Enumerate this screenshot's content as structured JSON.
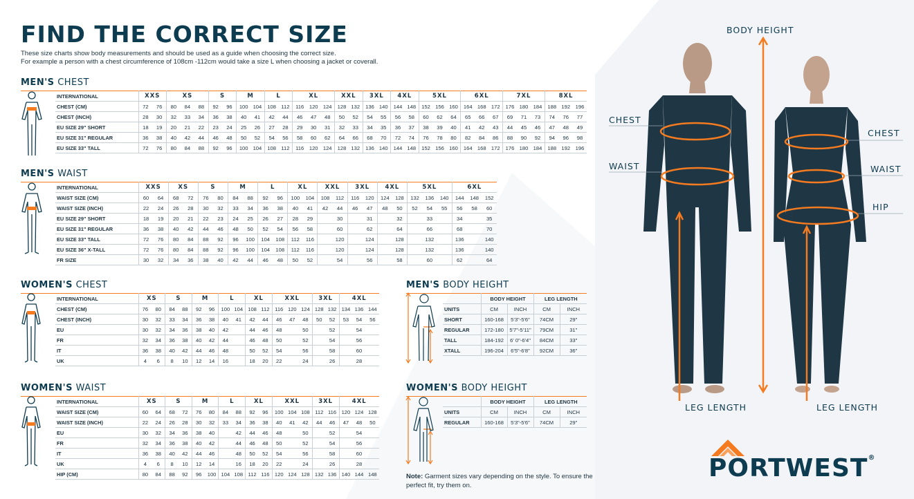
{
  "title": "FIND THE CORRECT SIZE",
  "intro": [
    "These size charts show body measurements and should be used as a guide when choosing the correct size.",
    "For example a person with a chest circumference of 108cm -112cm would take a size L when choosing a jacket or coverall."
  ],
  "colors": {
    "brand": "#0d3b4f",
    "accent": "#f47b20"
  },
  "tables": {
    "mens_chest": {
      "title_bold": "MEN'S",
      "title_rest": "CHEST",
      "icon": "male-chest-figure-icon",
      "header_label": "INTERNATIONAL",
      "sizes": [
        [
          "XXS",
          2
        ],
        [
          "XS",
          3
        ],
        [
          "S",
          2
        ],
        [
          "M",
          2
        ],
        [
          "L",
          2
        ],
        [
          "XL",
          3
        ],
        [
          "XXL",
          2
        ],
        [
          "3XL",
          2
        ],
        [
          "4XL",
          2
        ],
        [
          "5XL",
          3
        ],
        [
          "6XL",
          3
        ],
        [
          "7XL",
          3
        ],
        [
          "8XL",
          3
        ]
      ],
      "rows": [
        {
          "label": "CHEST (CM)",
          "cells": [
            "72",
            "76",
            "80",
            "84",
            "88",
            "92",
            "96",
            "100",
            "104",
            "108",
            "112",
            "116",
            "120",
            "124",
            "128",
            "132",
            "136",
            "140",
            "144",
            "148",
            "152",
            "156",
            "160",
            "164",
            "168",
            "172",
            "176",
            "180",
            "184",
            "188",
            "192",
            "196"
          ]
        },
        {
          "label": "CHEST (INCH)",
          "cells": [
            "28",
            "30",
            "32",
            "33",
            "34",
            "36",
            "38",
            "40",
            "41",
            "42",
            "44",
            "46",
            "47",
            "48",
            "50",
            "52",
            "54",
            "55",
            "56",
            "58",
            "60",
            "62",
            "64",
            "65",
            "66",
            "67",
            "69",
            "71",
            "73",
            "74",
            "76",
            "77"
          ]
        },
        {
          "label": "EU SIZE 29\" SHORT",
          "cells": [
            "18",
            "19",
            "20",
            "21",
            "22",
            "23",
            "24",
            "25",
            "26",
            "27",
            "28",
            "29",
            "30",
            "31",
            "32",
            "33",
            "34",
            "35",
            "36",
            "37",
            "38",
            "39",
            "40",
            "41",
            "42",
            "43",
            "44",
            "45",
            "46",
            "47",
            "48",
            "49"
          ]
        },
        {
          "label": "EU SIZE 31\" REGULAR",
          "cells": [
            "36",
            "38",
            "40",
            "42",
            "44",
            "46",
            "48",
            "50",
            "52",
            "54",
            "56",
            "58",
            "60",
            "62",
            "64",
            "66",
            "68",
            "70",
            "72",
            "74",
            "76",
            "78",
            "80",
            "82",
            "84",
            "86",
            "88",
            "90",
            "92",
            "94",
            "96",
            "98"
          ]
        },
        {
          "label": "EU SIZE 33\" TALL",
          "cells": [
            "72",
            "76",
            "80",
            "84",
            "88",
            "92",
            "96",
            "100",
            "104",
            "108",
            "112",
            "116",
            "120",
            "124",
            "128",
            "132",
            "136",
            "140",
            "144",
            "148",
            "152",
            "156",
            "160",
            "164",
            "168",
            "172",
            "176",
            "180",
            "184",
            "188",
            "192",
            "196"
          ]
        }
      ]
    },
    "mens_waist": {
      "title_bold": "MEN'S",
      "title_rest": "WAIST",
      "icon": "male-waist-figure-icon",
      "header_label": "INTERNATIONAL",
      "sizes": [
        [
          "XXS",
          2
        ],
        [
          "XS",
          2
        ],
        [
          "S",
          2
        ],
        [
          "M",
          2
        ],
        [
          "L",
          2
        ],
        [
          "XL",
          2
        ],
        [
          "XXL",
          2
        ],
        [
          "3XL",
          2
        ],
        [
          "4XL",
          2
        ],
        [
          "5XL",
          3
        ],
        [
          "6XL",
          3
        ]
      ],
      "rows": [
        {
          "label": "WAIST SIZE (CM)",
          "cells": [
            "60",
            "64",
            "68",
            "72",
            "76",
            "80",
            "84",
            "88",
            "92",
            "96",
            "100",
            "104",
            "108",
            "112",
            "116",
            "120",
            "124",
            "128",
            "132",
            "136",
            "140",
            "144",
            "148",
            "152"
          ]
        },
        {
          "label": "WAIST SIZE (INCH)",
          "cells": [
            "22",
            "24",
            "26",
            "28",
            "30",
            "32",
            "33",
            "34",
            "36",
            "38",
            "40",
            "41",
            "42",
            "44",
            "46",
            "47",
            "48",
            "50",
            "52",
            "54",
            "55",
            "56",
            "58",
            "60"
          ]
        },
        {
          "label": "EU SIZE 29\" SHORT",
          "cells": [
            "18",
            "19",
            "20",
            "21",
            "22",
            "23",
            "24",
            "25",
            "26",
            "27",
            "28",
            "29",
            "",
            "30",
            "",
            "31",
            "",
            "32",
            "",
            "33",
            "",
            "34",
            "",
            "35"
          ]
        },
        {
          "label": "EU SIZE 31\" REGULAR",
          "cells": [
            "36",
            "38",
            "40",
            "42",
            "44",
            "46",
            "48",
            "50",
            "52",
            "54",
            "56",
            "58",
            "",
            "60",
            "",
            "62",
            "",
            "64",
            "",
            "66",
            "",
            "68",
            "",
            "70"
          ]
        },
        {
          "label": "EU SIZE 33\" TALL",
          "cells": [
            "72",
            "76",
            "80",
            "84",
            "88",
            "92",
            "96",
            "100",
            "104",
            "108",
            "112",
            "116",
            "",
            "120",
            "",
            "124",
            "",
            "128",
            "",
            "132",
            "",
            "136",
            "",
            "140"
          ]
        },
        {
          "label": "EU SIZE 36\" X-TALL",
          "cells": [
            "72",
            "76",
            "80",
            "84",
            "88",
            "92",
            "96",
            "100",
            "104",
            "108",
            "112",
            "116",
            "",
            "120",
            "",
            "124",
            "",
            "128",
            "",
            "132",
            "",
            "136",
            "",
            "140"
          ]
        },
        {
          "label": "FR SIZE",
          "cells": [
            "30",
            "32",
            "34",
            "36",
            "38",
            "40",
            "42",
            "44",
            "46",
            "48",
            "50",
            "52",
            "",
            "54",
            "",
            "56",
            "",
            "58",
            "",
            "60",
            "",
            "62",
            "",
            "64"
          ]
        }
      ]
    },
    "womens_chest": {
      "title_bold": "WOMEN'S",
      "title_rest": "CHEST",
      "icon": "female-chest-figure-icon",
      "header_label": "INTERNATIONAL",
      "sizes": [
        [
          "XS",
          2
        ],
        [
          "S",
          2
        ],
        [
          "M",
          2
        ],
        [
          "L",
          2
        ],
        [
          "XL",
          2
        ],
        [
          "XXL",
          3
        ],
        [
          "3XL",
          2
        ],
        [
          "4XL",
          3
        ]
      ],
      "rows": [
        {
          "label": "CHEST (CM)",
          "cells": [
            "76",
            "80",
            "84",
            "88",
            "92",
            "96",
            "100",
            "104",
            "108",
            "112",
            "116",
            "120",
            "124",
            "128",
            "132",
            "134",
            "136",
            "144"
          ]
        },
        {
          "label": "CHEST (INCH)",
          "cells": [
            "30",
            "32",
            "33",
            "34",
            "36",
            "38",
            "40",
            "41",
            "42",
            "44",
            "46",
            "47",
            "48",
            "50",
            "52",
            "53",
            "54",
            "56"
          ]
        },
        {
          "label": "EU",
          "cells": [
            "30",
            "32",
            "34",
            "36",
            "38",
            "40",
            "42",
            "",
            "44",
            "46",
            "48",
            "",
            "50",
            "",
            "52",
            "",
            "54",
            ""
          ]
        },
        {
          "label": "FR",
          "cells": [
            "32",
            "34",
            "36",
            "38",
            "40",
            "42",
            "44",
            "",
            "46",
            "48",
            "50",
            "",
            "52",
            "",
            "54",
            "",
            "56",
            ""
          ]
        },
        {
          "label": "IT",
          "cells": [
            "36",
            "38",
            "40",
            "42",
            "44",
            "46",
            "48",
            "",
            "50",
            "52",
            "54",
            "",
            "56",
            "",
            "58",
            "",
            "60",
            ""
          ]
        },
        {
          "label": "UK",
          "cells": [
            "4",
            "6",
            "8",
            "10",
            "12",
            "14",
            "16",
            "",
            "18",
            "20",
            "22",
            "",
            "24",
            "",
            "26",
            "",
            "28",
            ""
          ]
        }
      ]
    },
    "womens_waist": {
      "title_bold": "WOMEN'S",
      "title_rest": "WAIST",
      "icon": "female-waist-figure-icon",
      "header_label": "INTERNATIONAL",
      "sizes": [
        [
          "XS",
          2
        ],
        [
          "S",
          2
        ],
        [
          "M",
          2
        ],
        [
          "L",
          2
        ],
        [
          "XL",
          2
        ],
        [
          "XXL",
          3
        ],
        [
          "3XL",
          2
        ],
        [
          "4XL",
          3
        ]
      ],
      "rows": [
        {
          "label": "WAIST SIZE (CM)",
          "cells": [
            "60",
            "64",
            "68",
            "72",
            "76",
            "80",
            "84",
            "88",
            "92",
            "96",
            "100",
            "104",
            "108",
            "112",
            "116",
            "120",
            "124",
            "128"
          ]
        },
        {
          "label": "WAIST SIZE (INCH)",
          "cells": [
            "22",
            "24",
            "26",
            "28",
            "30",
            "32",
            "33",
            "34",
            "36",
            "38",
            "40",
            "41",
            "42",
            "44",
            "46",
            "47",
            "48",
            "50"
          ]
        },
        {
          "label": "EU",
          "cells": [
            "30",
            "32",
            "34",
            "36",
            "38",
            "40",
            "",
            "42",
            "44",
            "46",
            "48",
            "",
            "50",
            "",
            "52",
            "",
            "54",
            ""
          ]
        },
        {
          "label": "FR",
          "cells": [
            "32",
            "34",
            "36",
            "38",
            "40",
            "42",
            "",
            "44",
            "46",
            "48",
            "50",
            "",
            "52",
            "",
            "54",
            "",
            "56",
            ""
          ]
        },
        {
          "label": "IT",
          "cells": [
            "36",
            "38",
            "40",
            "42",
            "44",
            "46",
            "",
            "48",
            "50",
            "52",
            "54",
            "",
            "56",
            "",
            "58",
            "",
            "60",
            ""
          ]
        },
        {
          "label": "UK",
          "cells": [
            "4",
            "6",
            "8",
            "10",
            "12",
            "14",
            "",
            "16",
            "18",
            "20",
            "22",
            "",
            "24",
            "",
            "26",
            "",
            "28",
            ""
          ]
        },
        {
          "label": "HIP (CM)",
          "cells": [
            "80",
            "84",
            "88",
            "92",
            "96",
            "100",
            "104",
            "108",
            "112",
            "116",
            "120",
            "124",
            "128",
            "132",
            "136",
            "140",
            "144",
            "148"
          ]
        }
      ]
    },
    "mens_height": {
      "title_bold": "MEN'S",
      "title_rest": "BODY HEIGHT",
      "icon": "male-height-figure-icon",
      "groups": [
        "BODY HEIGHT",
        "LEG LENGTH"
      ],
      "units_label": "UNITS",
      "units": [
        "CM",
        "INCH",
        "CM",
        "INCH"
      ],
      "rows": [
        {
          "label": "SHORT",
          "cells": [
            "160-168",
            "5'3\"-5'6\"",
            "74CM",
            "29\""
          ]
        },
        {
          "label": "REGULAR",
          "cells": [
            "172-180",
            "5'7\"-5'11\"",
            "79CM",
            "31\""
          ]
        },
        {
          "label": "TALL",
          "cells": [
            "184-192",
            "6' 0\"-6'4\"",
            "84CM",
            "33\""
          ]
        },
        {
          "label": "XTALL",
          "cells": [
            "196-204",
            "6'5\"-6'8\"",
            "92CM",
            "36\""
          ]
        }
      ]
    },
    "womens_height": {
      "title_bold": "WOMEN'S",
      "title_rest": "BODY HEIGHT",
      "icon": "female-height-figure-icon",
      "groups": [
        "BODY HEIGHT",
        "LEG LENGTH"
      ],
      "units_label": "UNITS",
      "units": [
        "CM",
        "INCH",
        "CM",
        "INCH"
      ],
      "rows": [
        {
          "label": "REGULAR",
          "cells": [
            "160-168",
            "5'3\"-5'6\"",
            "74CM",
            "29\""
          ]
        }
      ]
    }
  },
  "note": {
    "bold": "Note:",
    "text": " Garment sizes vary depending on the style. To ensure the perfect fit, try them on."
  },
  "figure_labels": {
    "body_height": "BODY HEIGHT",
    "chest_m": "CHEST",
    "waist_m": "WAIST",
    "chest_f": "CHEST",
    "waist_f": "WAIST",
    "hip_f": "HIP",
    "leg_m": "LEG LENGTH",
    "leg_f": "LEG LENGTH"
  },
  "logo": {
    "text": "PORTWEST",
    "mark": "®"
  }
}
